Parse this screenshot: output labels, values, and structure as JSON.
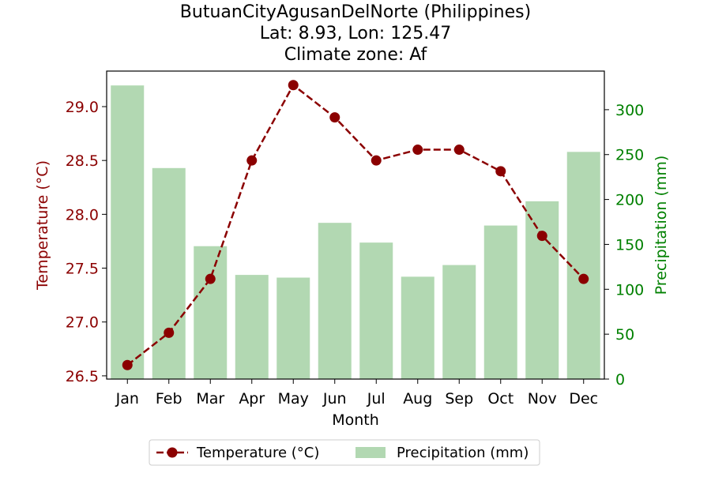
{
  "chart_data": {
    "type": "bar+line",
    "title_lines": [
      "ButuanCityAgusanDelNorte (Philippines)",
      "Lat: 8.93, Lon: 125.47",
      "Climate zone: Af"
    ],
    "xlabel": "Month",
    "ylabel_left": "Temperature (°C)",
    "ylabel_right": "Precipitation (mm)",
    "categories": [
      "Jan",
      "Feb",
      "Mar",
      "Apr",
      "May",
      "Jun",
      "Jul",
      "Aug",
      "Sep",
      "Oct",
      "Nov",
      "Dec"
    ],
    "series": [
      {
        "name": "Temperature (°C)",
        "kind": "line",
        "axis": "left",
        "color": "#8b0000",
        "values": [
          26.6,
          26.9,
          27.4,
          28.5,
          29.2,
          28.9,
          28.5,
          28.6,
          28.6,
          28.4,
          27.8,
          27.4
        ]
      },
      {
        "name": "Precipitation (mm)",
        "kind": "bar",
        "axis": "right",
        "color": "#b2d8b2",
        "values": [
          327,
          235,
          148,
          116,
          113,
          174,
          152,
          114,
          127,
          171,
          198,
          253
        ]
      }
    ],
    "ylim_left": [
      26.47,
      29.33
    ],
    "yticks_left": [
      "26.5",
      "27.0",
      "27.5",
      "28.0",
      "28.5",
      "29.0"
    ],
    "ylim_right": [
      0,
      343
    ],
    "yticks_right": [
      "0",
      "50",
      "100",
      "150",
      "200",
      "250",
      "300"
    ],
    "left_axis_color": "#8b0000",
    "right_axis_color": "#008000",
    "legend_position": "bottom-center",
    "grid": false
  }
}
